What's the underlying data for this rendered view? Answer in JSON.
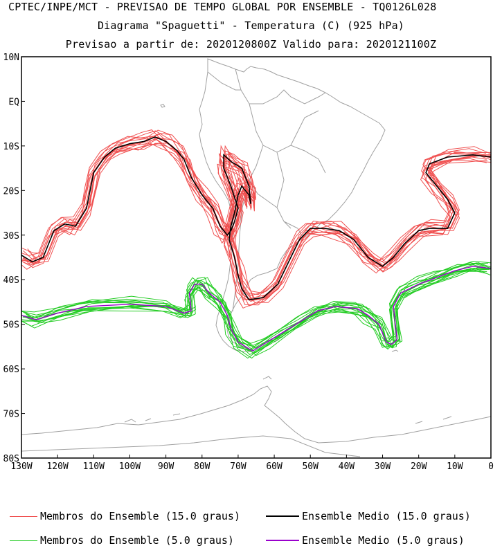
{
  "titles": {
    "line1": "CPTEC/INPE/MCT - PREVISAO DE TEMPO GLOBAL POR ENSEMBLE - TQ0126L028",
    "line2": "Diagrama \"Spaguetti\" - Temperatura (C) (925 hPa)",
    "line3": "Previsao a partir de: 2020120800Z  Valido para: 2020121100Z"
  },
  "axes": {
    "lat_labels": [
      "10N",
      "EQ",
      "10S",
      "20S",
      "30S",
      "40S",
      "50S",
      "60S",
      "70S",
      "80S"
    ],
    "lon_labels": [
      "130W",
      "120W",
      "110W",
      "100W",
      "90W",
      "80W",
      "70W",
      "60W",
      "50W",
      "40W",
      "30W",
      "20W",
      "10W",
      "0"
    ],
    "lat_range": [
      -80,
      10
    ],
    "lon_range": [
      -130,
      0
    ]
  },
  "legend": [
    {
      "label": "Membros do Ensemble (15.0 graus)",
      "color": "#f05050"
    },
    {
      "label": "Ensemble Medio (15.0 graus)",
      "color": "#000000"
    },
    {
      "label": "Membros do Ensemble (5.0 graus)",
      "color": "#22cc22"
    },
    {
      "label": "Ensemble Medio (5.0 graus)",
      "color": "#9900cc"
    }
  ],
  "colors": {
    "coast": "#a0a0a0",
    "member15": "#f05050",
    "mean15": "#000000",
    "member5": "#22cc22",
    "mean5": "#9900cc"
  },
  "isotherm_15": [
    [
      -130,
      -34.5
    ],
    [
      -127,
      -36
    ],
    [
      -124,
      -35
    ],
    [
      -121,
      -29
    ],
    [
      -118,
      -27.5
    ],
    [
      -115,
      -28
    ],
    [
      -112,
      -24
    ],
    [
      -111,
      -20
    ],
    [
      -110,
      -16
    ],
    [
      -107,
      -12.5
    ],
    [
      -104,
      -10.5
    ],
    [
      -100,
      -9.5
    ],
    [
      -96,
      -9
    ],
    [
      -93,
      -8
    ],
    [
      -90,
      -9
    ],
    [
      -87,
      -11
    ],
    [
      -85,
      -13
    ],
    [
      -83,
      -17
    ],
    [
      -80,
      -21
    ],
    [
      -77,
      -24
    ],
    [
      -75,
      -28
    ],
    [
      -73,
      -30
    ],
    [
      -72,
      -29
    ],
    [
      -71,
      -27
    ],
    [
      -70,
      -24
    ],
    [
      -72,
      -19
    ],
    [
      -74,
      -15
    ],
    [
      -74,
      -12
    ],
    [
      -72,
      -13.5
    ],
    [
      -69,
      -15
    ],
    [
      -68,
      -17
    ],
    [
      -67,
      -19
    ],
    [
      -66.5,
      -23
    ],
    [
      -67,
      -21
    ],
    [
      -69,
      -19
    ],
    [
      -70,
      -21
    ],
    [
      -71,
      -25
    ],
    [
      -72,
      -28
    ],
    [
      -72.5,
      -31
    ],
    [
      -71,
      -35
    ],
    [
      -70,
      -39
    ],
    [
      -69,
      -42
    ],
    [
      -67,
      -44.5
    ],
    [
      -63,
      -44
    ],
    [
      -59,
      -41
    ],
    [
      -56,
      -36
    ],
    [
      -53,
      -31
    ],
    [
      -50,
      -28.5
    ],
    [
      -46,
      -28.5
    ],
    [
      -42,
      -29
    ],
    [
      -38,
      -31
    ],
    [
      -34,
      -35
    ],
    [
      -30,
      -37
    ],
    [
      -27,
      -35
    ],
    [
      -24,
      -32
    ],
    [
      -20,
      -29
    ],
    [
      -17,
      -28.5
    ],
    [
      -12,
      -28.5
    ],
    [
      -10,
      -25
    ],
    [
      -12,
      -22
    ],
    [
      -15,
      -19
    ],
    [
      -18,
      -16
    ],
    [
      -17,
      -14
    ],
    [
      -12,
      -12.5
    ],
    [
      -5,
      -12
    ],
    [
      0,
      -12.5
    ]
  ],
  "isotherm_5": [
    [
      -130,
      -48
    ],
    [
      -126,
      -49
    ],
    [
      -120,
      -47.5
    ],
    [
      -112,
      -46
    ],
    [
      -100,
      -45.5
    ],
    [
      -90,
      -46
    ],
    [
      -85,
      -47.5
    ],
    [
      -83,
      -47
    ],
    [
      -83.5,
      -43
    ],
    [
      -82,
      -41
    ],
    [
      -80,
      -41
    ],
    [
      -78,
      -43
    ],
    [
      -75,
      -45
    ],
    [
      -73,
      -48
    ],
    [
      -72,
      -51
    ],
    [
      -70,
      -54
    ],
    [
      -66,
      -56
    ],
    [
      -62,
      -54
    ],
    [
      -58,
      -52
    ],
    [
      -53,
      -49.5
    ],
    [
      -48,
      -47
    ],
    [
      -43,
      -46
    ],
    [
      -37,
      -46.5
    ],
    [
      -34,
      -48
    ],
    [
      -31,
      -50
    ],
    [
      -29,
      -54
    ],
    [
      -27.5,
      -54.5
    ],
    [
      -26,
      -53.5
    ],
    [
      -27,
      -46
    ],
    [
      -25,
      -43
    ],
    [
      -20,
      -41
    ],
    [
      -15,
      -39.5
    ],
    [
      -10,
      -38
    ],
    [
      -5,
      -37
    ],
    [
      0,
      -37.5
    ]
  ]
}
